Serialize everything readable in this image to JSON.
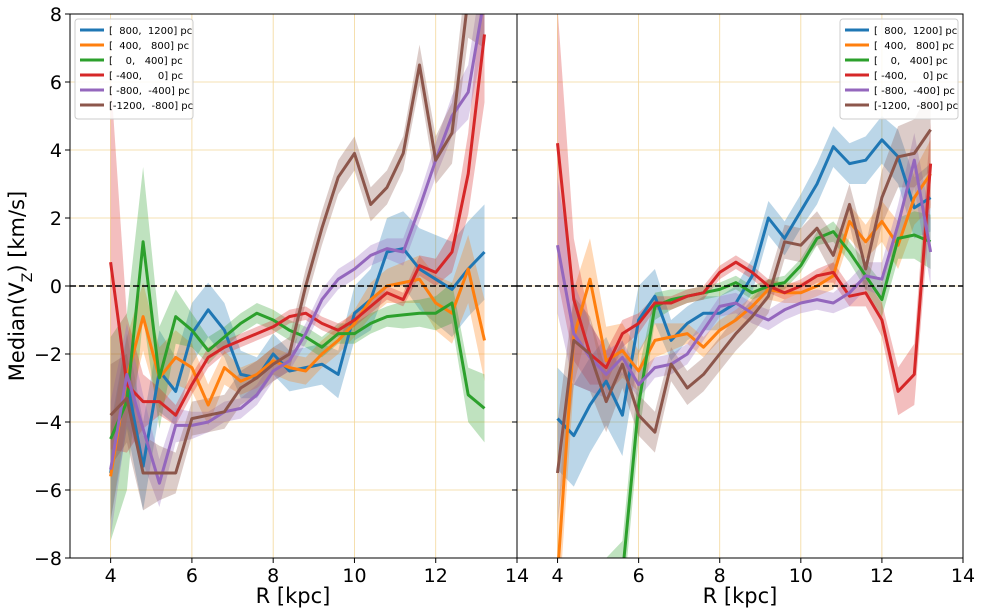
{
  "chart_data": [
    {
      "type": "line",
      "panel": "left",
      "xlabel": "R [kpc]",
      "ylabel": "Median(V$_Z$) [km/s]",
      "ylabel_main": "Median(V",
      "ylabel_sub": "Z",
      "ylabel_tail": ") [km/s]",
      "xlim": [
        3,
        14
      ],
      "ylim": [
        -8,
        8
      ],
      "xticks": [
        4,
        6,
        8,
        10,
        12,
        14
      ],
      "yticks": [
        -8,
        -6,
        -4,
        -2,
        0,
        2,
        4,
        6,
        8
      ],
      "grid": true,
      "reference_line": 0,
      "legend_position": "top-left",
      "x": [
        4.0,
        4.4,
        4.8,
        5.2,
        5.6,
        6.0,
        6.4,
        6.8,
        7.2,
        7.6,
        8.0,
        8.4,
        8.8,
        9.2,
        9.6,
        10.0,
        10.4,
        10.8,
        11.2,
        11.6,
        12.0,
        12.4,
        12.8,
        13.2
      ],
      "series": [
        {
          "name": "[  800,  1200] pc",
          "color": "#1f77b4",
          "values": [
            -5.5,
            -2.8,
            -5.3,
            -2.5,
            -3.1,
            -1.4,
            -0.7,
            -1.3,
            -2.6,
            -2.7,
            -2.0,
            -2.5,
            -2.4,
            -2.3,
            -2.6,
            -0.8,
            -0.4,
            1.0,
            1.1,
            0.5,
            0.2,
            -0.1,
            0.5,
            1.0
          ],
          "band": [
            1.4,
            1.4,
            1.3,
            1.2,
            1.0,
            0.9,
            0.8,
            0.8,
            0.7,
            0.6,
            0.6,
            0.6,
            0.6,
            0.6,
            0.7,
            0.8,
            0.9,
            1.0,
            1.1,
            1.2,
            1.3,
            1.4,
            1.4,
            1.4
          ]
        },
        {
          "name": "[  400,   800] pc",
          "color": "#ff7f0e",
          "values": [
            -5.6,
            -2.7,
            -0.9,
            -2.7,
            -2.1,
            -2.4,
            -3.5,
            -2.4,
            -2.8,
            -2.6,
            -2.2,
            -2.4,
            -2.5,
            -2.0,
            -1.6,
            -1.1,
            -0.4,
            0.0,
            0.1,
            0.2,
            -0.5,
            -0.8,
            0.5,
            -1.6
          ],
          "band": [
            1.3,
            1.2,
            1.0,
            0.9,
            0.8,
            0.7,
            0.6,
            0.5,
            0.4,
            0.4,
            0.4,
            0.4,
            0.4,
            0.4,
            0.4,
            0.4,
            0.5,
            0.5,
            0.6,
            0.7,
            0.8,
            0.9,
            1.0,
            1.2
          ]
        },
        {
          "name": "[    0,   400] pc",
          "color": "#2ca02c",
          "values": [
            -4.5,
            -3.4,
            1.3,
            -2.7,
            -0.9,
            -1.3,
            -1.9,
            -1.5,
            -1.1,
            -0.8,
            -1.0,
            -1.3,
            -1.5,
            -1.8,
            -1.4,
            -1.4,
            -1.1,
            -0.9,
            -0.85,
            -0.8,
            -0.8,
            -0.5,
            -3.2,
            -3.6
          ],
          "band": [
            3.0,
            2.6,
            2.2,
            1.5,
            0.8,
            0.5,
            0.4,
            0.3,
            0.3,
            0.3,
            0.3,
            0.3,
            0.3,
            0.3,
            0.3,
            0.3,
            0.3,
            0.3,
            0.4,
            0.4,
            0.5,
            0.6,
            0.8,
            1.0
          ]
        },
        {
          "name": "[ -400,     0] pc",
          "color": "#d62728",
          "values": [
            0.7,
            -2.9,
            -3.4,
            -3.4,
            -3.8,
            -2.9,
            -2.1,
            -1.8,
            -1.6,
            -1.4,
            -1.2,
            -0.9,
            -0.8,
            -1.1,
            -1.3,
            -1.0,
            -0.6,
            -0.2,
            -0.4,
            0.6,
            0.4,
            1.0,
            3.3,
            7.4
          ],
          "band": [
            5.5,
            2.0,
            0.8,
            0.4,
            0.3,
            0.3,
            0.3,
            0.2,
            0.2,
            0.2,
            0.2,
            0.2,
            0.2,
            0.2,
            0.2,
            0.2,
            0.2,
            0.2,
            0.2,
            0.3,
            0.4,
            0.6,
            1.2,
            2.0
          ]
        },
        {
          "name": "[ -800,  -400] pc",
          "color": "#9467bd",
          "values": [
            -5.4,
            -2.6,
            -4.2,
            -5.8,
            -4.1,
            -4.1,
            -4.0,
            -3.7,
            -3.6,
            -3.2,
            -2.5,
            -2.2,
            -1.4,
            -0.4,
            0.2,
            0.5,
            0.9,
            1.1,
            1.0,
            2.3,
            3.7,
            5.0,
            5.7,
            8.5
          ],
          "band": [
            2.0,
            1.5,
            1.0,
            0.7,
            0.5,
            0.4,
            0.3,
            0.3,
            0.3,
            0.3,
            0.3,
            0.3,
            0.3,
            0.3,
            0.3,
            0.3,
            0.3,
            0.3,
            0.4,
            0.4,
            0.5,
            0.6,
            0.8,
            1.2
          ]
        },
        {
          "name": "[-1200,  -800] pc",
          "color": "#8c564b",
          "values": [
            -3.8,
            -3.3,
            -5.5,
            -5.5,
            -5.5,
            -3.9,
            -3.8,
            -3.7,
            -3.0,
            -2.7,
            -2.3,
            -2.0,
            0.0,
            1.7,
            3.2,
            3.9,
            2.4,
            2.9,
            3.9,
            6.5,
            3.7,
            4.5,
            8.5,
            8.5
          ],
          "band": [
            1.5,
            1.3,
            1.1,
            0.8,
            0.6,
            0.5,
            0.5,
            0.5,
            0.5,
            0.5,
            0.5,
            0.5,
            0.5,
            0.5,
            0.5,
            0.5,
            0.5,
            0.5,
            0.5,
            0.6,
            0.7,
            0.9,
            1.2,
            1.5
          ]
        }
      ]
    },
    {
      "type": "line",
      "panel": "right",
      "xlabel": "R [kpc]",
      "ylabel": "",
      "xlim": [
        3,
        14
      ],
      "ylim": [
        -8,
        8
      ],
      "xticks": [
        4,
        6,
        8,
        10,
        12,
        14
      ],
      "yticks": [
        -8,
        -6,
        -4,
        -2,
        0,
        2,
        4,
        6,
        8
      ],
      "grid": true,
      "reference_line": 0,
      "legend_position": "top-right",
      "x": [
        4.0,
        4.4,
        4.8,
        5.2,
        5.6,
        6.0,
        6.4,
        6.8,
        7.2,
        7.6,
        8.0,
        8.4,
        8.8,
        9.2,
        9.6,
        10.0,
        10.4,
        10.8,
        11.2,
        11.6,
        12.0,
        12.4,
        12.8,
        13.2
      ],
      "series": [
        {
          "name": "[  800,  1200] pc",
          "color": "#1f77b4",
          "values": [
            -3.9,
            -4.4,
            -3.5,
            -2.8,
            -3.8,
            -1.0,
            -0.3,
            -1.6,
            -1.1,
            -0.8,
            -0.8,
            -0.5,
            0.3,
            2.0,
            1.4,
            2.2,
            3.0,
            4.1,
            3.6,
            3.7,
            4.3,
            3.8,
            2.3,
            2.6
          ],
          "band": [
            1.5,
            1.5,
            1.4,
            1.3,
            1.2,
            1.0,
            0.8,
            0.6,
            0.5,
            0.5,
            0.5,
            0.5,
            0.5,
            0.5,
            0.5,
            0.5,
            0.6,
            0.6,
            0.6,
            0.7,
            0.7,
            0.8,
            0.9,
            1.0
          ]
        },
        {
          "name": "[  400,   800] pc",
          "color": "#ff7f0e",
          "values": [
            -8.5,
            -1.5,
            0.2,
            -2.2,
            -1.9,
            -2.5,
            -1.6,
            -1.5,
            -1.4,
            -1.8,
            -1.3,
            -1.0,
            -0.6,
            -0.1,
            -0.2,
            -0.2,
            0.0,
            0.3,
            1.9,
            1.3,
            1.9,
            1.2,
            2.6,
            3.3
          ],
          "band": [
            1.5,
            1.4,
            1.2,
            1.0,
            0.8,
            0.6,
            0.5,
            0.4,
            0.3,
            0.3,
            0.3,
            0.3,
            0.3,
            0.3,
            0.3,
            0.3,
            0.3,
            0.4,
            0.5,
            0.5,
            0.6,
            0.7,
            0.8,
            1.0
          ]
        },
        {
          "name": "[    0,   400] pc",
          "color": "#2ca02c",
          "values": [
            -9.0,
            -9.0,
            -9.0,
            -9.0,
            -8.5,
            -3.5,
            -0.6,
            -0.4,
            -0.3,
            -0.2,
            -0.1,
            0.1,
            -0.2,
            0.0,
            0.1,
            0.6,
            1.4,
            1.6,
            1.0,
            0.3,
            -0.4,
            1.4,
            1.5,
            1.3
          ],
          "band": [
            1.0,
            1.0,
            1.0,
            1.0,
            1.0,
            1.0,
            0.4,
            0.3,
            0.2,
            0.2,
            0.2,
            0.2,
            0.2,
            0.2,
            0.2,
            0.2,
            0.2,
            0.3,
            0.3,
            0.4,
            0.5,
            0.6,
            0.7,
            0.8
          ]
        },
        {
          "name": "[ -400,     0] pc",
          "color": "#d62728",
          "values": [
            4.2,
            -0.4,
            -2.0,
            -2.4,
            -1.4,
            -1.1,
            -0.5,
            -0.5,
            -0.3,
            -0.2,
            0.4,
            0.7,
            0.4,
            0.0,
            -0.2,
            0.0,
            0.3,
            0.4,
            -0.3,
            -0.2,
            -1.0,
            -3.1,
            -2.6,
            3.6
          ],
          "band": [
            4.0,
            1.8,
            0.9,
            0.5,
            0.4,
            0.3,
            0.2,
            0.2,
            0.2,
            0.2,
            0.2,
            0.2,
            0.2,
            0.2,
            0.2,
            0.2,
            0.2,
            0.3,
            0.3,
            0.4,
            0.5,
            0.7,
            0.9,
            1.2
          ]
        },
        {
          "name": "[ -800,  -400] pc",
          "color": "#9467bd",
          "values": [
            1.2,
            -1.4,
            -2.1,
            -2.6,
            -2.1,
            -2.9,
            -2.4,
            -2.3,
            -2.0,
            -1.3,
            -0.6,
            -0.5,
            -0.8,
            -1.0,
            -0.7,
            -0.5,
            -0.4,
            -0.5,
            -0.2,
            0.3,
            0.2,
            1.8,
            3.7,
            1.0
          ],
          "band": [
            2.0,
            1.5,
            1.0,
            0.7,
            0.5,
            0.4,
            0.3,
            0.3,
            0.3,
            0.3,
            0.3,
            0.3,
            0.3,
            0.3,
            0.3,
            0.3,
            0.3,
            0.3,
            0.4,
            0.4,
            0.5,
            0.6,
            0.8,
            1.0
          ]
        },
        {
          "name": "[-1200,  -800] pc",
          "color": "#8c564b",
          "values": [
            -5.5,
            -1.6,
            -2.0,
            -3.4,
            -2.3,
            -3.8,
            -4.3,
            -2.3,
            -3.0,
            -2.6,
            -2.0,
            -1.4,
            -0.9,
            -0.3,
            1.3,
            1.2,
            1.7,
            0.9,
            2.4,
            0.5,
            2.6,
            3.8,
            3.9,
            4.6
          ],
          "band": [
            1.5,
            1.3,
            1.1,
            0.9,
            0.7,
            0.6,
            0.6,
            0.5,
            0.5,
            0.5,
            0.5,
            0.5,
            0.5,
            0.5,
            0.5,
            0.5,
            0.5,
            0.6,
            0.6,
            0.7,
            0.8,
            0.9,
            1.0,
            1.2
          ]
        }
      ]
    }
  ]
}
